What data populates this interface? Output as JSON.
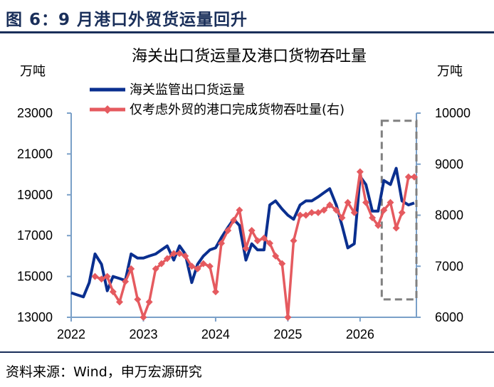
{
  "figure_title": "图 6：9 月港口外贸货运量回升",
  "source": "资料来源：Wind，申万宏源研究",
  "chart_data": {
    "type": "line",
    "title": "海关出口货运量及港口货物吞吐量",
    "y_left_unit": "万吨",
    "y_right_unit": "万吨",
    "y_left_lim": [
      13000,
      23000
    ],
    "y_right_lim": [
      6000,
      10000
    ],
    "y_left_ticks": [
      "13000",
      "15000",
      "17000",
      "19000",
      "21000",
      "23000"
    ],
    "y_right_ticks": [
      "6000",
      "7000",
      "8000",
      "9000",
      "10000"
    ],
    "x_lim": [
      2022.0,
      2026.78
    ],
    "x_ticks": [
      "2022",
      "2023",
      "2024",
      "2025",
      "2026"
    ],
    "grid": false,
    "legend_position": "top-left",
    "highlight_box": {
      "x": [
        2026.3,
        2026.78
      ],
      "y_right": [
        6350,
        9850
      ],
      "style": "dashed"
    },
    "series": [
      {
        "name": "海关监管出口货运量",
        "axis": "left",
        "color": "#0a2f8f",
        "marker": "none",
        "x": [
          2022.0,
          2022.08,
          2022.17,
          2022.25,
          2022.33,
          2022.42,
          2022.5,
          2022.58,
          2022.67,
          2022.75,
          2022.83,
          2022.92,
          2023.0,
          2023.08,
          2023.17,
          2023.25,
          2023.33,
          2023.42,
          2023.5,
          2023.58,
          2023.67,
          2023.75,
          2023.83,
          2023.92,
          2024.0,
          2024.08,
          2024.17,
          2024.25,
          2024.33,
          2024.42,
          2024.5,
          2024.58,
          2024.67,
          2024.75,
          2024.83,
          2024.92,
          2025.0,
          2025.08,
          2025.17,
          2025.25,
          2025.33,
          2025.42,
          2025.5,
          2025.58,
          2025.67,
          2025.75,
          2025.83,
          2025.92,
          2026.0,
          2026.08,
          2026.17,
          2026.25,
          2026.33,
          2026.42,
          2026.5,
          2026.58,
          2026.67,
          2026.75
        ],
        "values": [
          14200,
          14100,
          14000,
          14700,
          16100,
          15600,
          14300,
          15000,
          14900,
          14800,
          16100,
          15900,
          15900,
          16000,
          16100,
          16300,
          16500,
          15800,
          16500,
          16100,
          14700,
          15600,
          16000,
          16300,
          16400,
          16900,
          17400,
          17800,
          17500,
          15800,
          16600,
          16300,
          16300,
          18500,
          18700,
          18300,
          18000,
          17800,
          18500,
          18700,
          18700,
          18900,
          19100,
          19300,
          18500,
          17500,
          16400,
          16600,
          19900,
          19500,
          18200,
          18200,
          19700,
          19500,
          20300,
          18700,
          18500,
          18600
        ]
      },
      {
        "name": "仅考虑外贸的港口完成货物吞吐量(右)",
        "axis": "right",
        "color": "#e55a5f",
        "marker": "diamond",
        "x": [
          2022.33,
          2022.42,
          2022.5,
          2022.58,
          2022.67,
          2022.75,
          2022.83,
          2022.92,
          2023.0,
          2023.08,
          2023.17,
          2023.25,
          2023.33,
          2023.42,
          2023.5,
          2023.58,
          2023.67,
          2023.75,
          2023.83,
          2023.92,
          2024.0,
          2024.08,
          2024.17,
          2024.25,
          2024.33,
          2024.42,
          2024.5,
          2024.58,
          2024.67,
          2024.75,
          2024.83,
          2024.92,
          2025.0,
          2025.08,
          2025.17,
          2025.25,
          2025.33,
          2025.42,
          2025.5,
          2025.58,
          2025.67,
          2025.75,
          2025.83,
          2025.92,
          2026.0,
          2026.08,
          2026.17,
          2026.25,
          2026.33,
          2026.42,
          2026.5,
          2026.58,
          2026.67,
          2026.75
        ],
        "values": [
          6800,
          6750,
          6800,
          6500,
          6300,
          6700,
          6950,
          6350,
          6000,
          6300,
          6950,
          7050,
          7150,
          7250,
          7250,
          7200,
          7000,
          6950,
          7050,
          7000,
          6500,
          7450,
          7700,
          7900,
          8100,
          7350,
          7700,
          7500,
          7550,
          7450,
          7200,
          7050,
          6000,
          7500,
          8000,
          8000,
          8050,
          8050,
          8100,
          8200,
          8100,
          7950,
          8250,
          8050,
          8850,
          8250,
          7950,
          7800,
          8100,
          8250,
          7750,
          8050,
          8750,
          8750
        ]
      }
    ]
  }
}
